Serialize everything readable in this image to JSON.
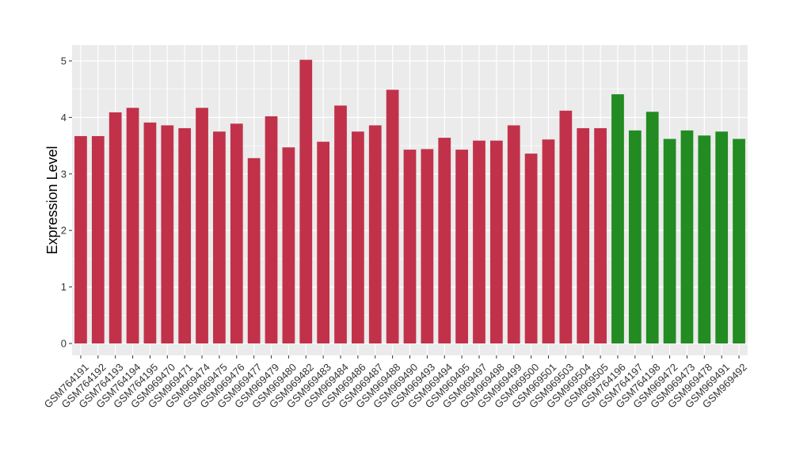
{
  "chart_data": {
    "type": "bar",
    "title": "",
    "xlabel": "",
    "ylabel": "Expression Level",
    "ylim": [
      0,
      5.2
    ],
    "yticks": [
      0,
      1,
      2,
      3,
      4,
      5
    ],
    "grid": true,
    "legend": "none",
    "categories": [
      "GSM764191",
      "GSM764192",
      "GSM764193",
      "GSM764194",
      "GSM764195",
      "GSM969470",
      "GSM969471",
      "GSM969474",
      "GSM969475",
      "GSM969476",
      "GSM969477",
      "GSM969479",
      "GSM969480",
      "GSM969482",
      "GSM969483",
      "GSM969484",
      "GSM969486",
      "GSM969487",
      "GSM969488",
      "GSM969490",
      "GSM969493",
      "GSM969494",
      "GSM969495",
      "GSM969497",
      "GSM969498",
      "GSM969499",
      "GSM969500",
      "GSM969501",
      "GSM969503",
      "GSM969504",
      "GSM969505",
      "GSM764196",
      "GSM764197",
      "GSM764198",
      "GSM969472",
      "GSM969473",
      "GSM969478",
      "GSM969491",
      "GSM969492"
    ],
    "values": [
      3.67,
      3.67,
      4.09,
      4.17,
      3.91,
      3.86,
      3.81,
      4.17,
      3.75,
      3.89,
      3.28,
      4.02,
      3.47,
      5.02,
      3.57,
      4.21,
      3.75,
      3.86,
      4.49,
      3.43,
      3.44,
      3.64,
      3.43,
      3.59,
      3.59,
      3.86,
      3.36,
      3.61,
      4.12,
      3.81,
      3.81,
      4.41,
      3.77,
      4.1,
      3.62,
      3.77,
      3.68,
      3.75,
      3.62
    ],
    "groups": [
      "a",
      "a",
      "a",
      "a",
      "a",
      "a",
      "a",
      "a",
      "a",
      "a",
      "a",
      "a",
      "a",
      "a",
      "a",
      "a",
      "a",
      "a",
      "a",
      "a",
      "a",
      "a",
      "a",
      "a",
      "a",
      "a",
      "a",
      "a",
      "a",
      "a",
      "a",
      "b",
      "b",
      "b",
      "b",
      "b",
      "b",
      "b",
      "b"
    ],
    "colors": {
      "a": "#c1324a",
      "b": "#228b22",
      "panel": "#ebebeb",
      "grid": "#ffffff"
    }
  }
}
